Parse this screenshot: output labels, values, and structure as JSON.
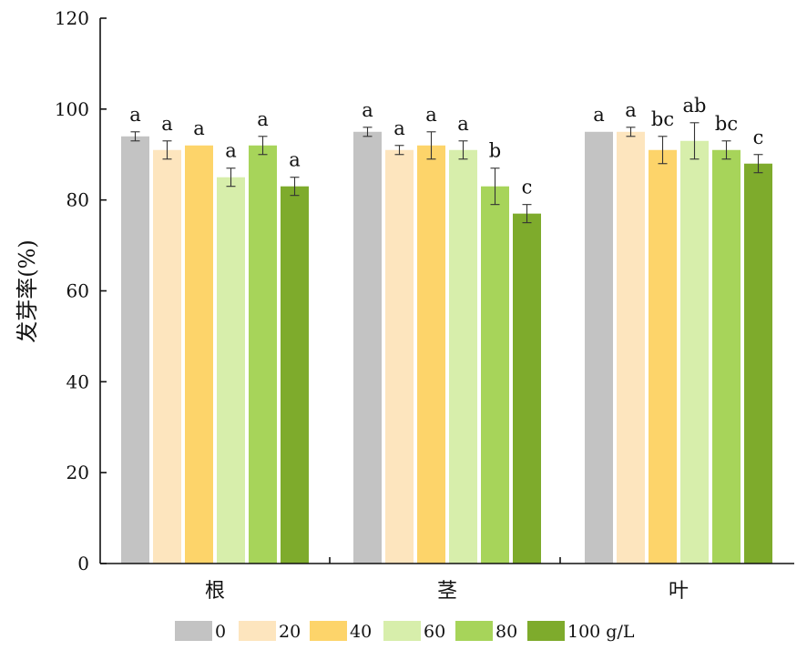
{
  "chart_data": {
    "type": "bar",
    "ylabel": "发芽率(%)",
    "xlabel": "",
    "title": "",
    "ylim": [
      0,
      120
    ],
    "yticks": [
      0,
      20,
      40,
      60,
      80,
      100,
      120
    ],
    "grid": false,
    "legend_position": "bottom",
    "categories": [
      "根",
      "茎",
      "叶"
    ],
    "series": [
      {
        "name": "0",
        "color": "#c3c3c3",
        "values": [
          94,
          95,
          95
        ],
        "errors": [
          1,
          1,
          0
        ],
        "letters": [
          "a",
          "a",
          "a"
        ]
      },
      {
        "name": "20",
        "color": "#fde5be",
        "values": [
          91,
          91,
          95
        ],
        "errors": [
          2,
          1,
          1
        ],
        "letters": [
          "a",
          "a",
          "a"
        ]
      },
      {
        "name": "40",
        "color": "#fdd46a",
        "values": [
          92,
          92,
          91
        ],
        "errors": [
          0,
          3,
          3
        ],
        "letters": [
          "a",
          "a",
          "bc"
        ]
      },
      {
        "name": "60",
        "color": "#d7eeab",
        "values": [
          85,
          91,
          93
        ],
        "errors": [
          2,
          2,
          4
        ],
        "letters": [
          "a",
          "a",
          "ab"
        ]
      },
      {
        "name": "80",
        "color": "#a7d45a",
        "values": [
          92,
          83,
          91
        ],
        "errors": [
          2,
          4,
          2
        ],
        "letters": [
          "a",
          "b",
          "bc"
        ]
      },
      {
        "name": "100 g/L",
        "color": "#7eab2c",
        "values": [
          83,
          77,
          88
        ],
        "errors": [
          2,
          2,
          2
        ],
        "letters": [
          "a",
          "c",
          "c"
        ]
      }
    ]
  }
}
